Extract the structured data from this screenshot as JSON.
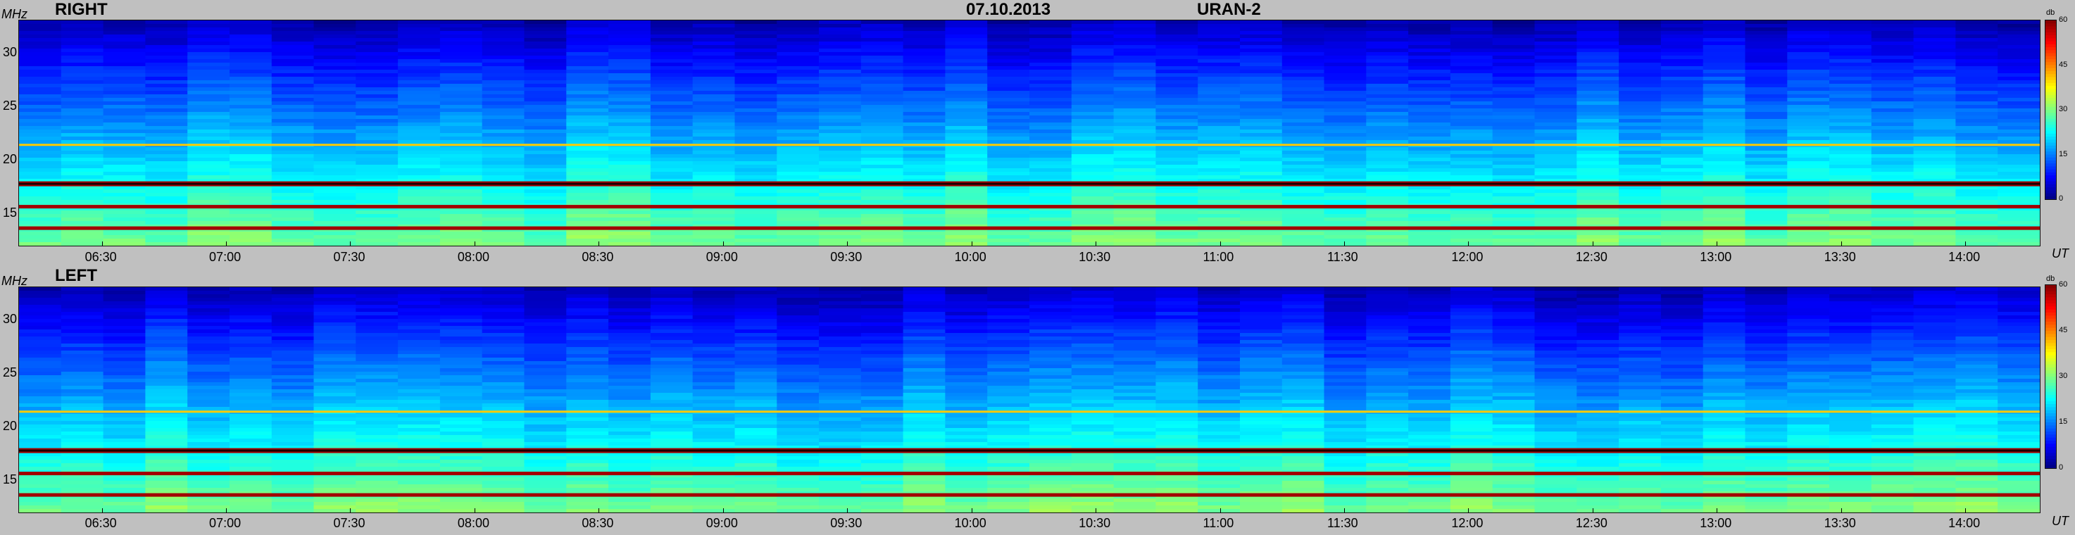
{
  "header": {
    "date": "07.10.2013",
    "instrument": "URAN-2"
  },
  "chart_data": [
    {
      "type": "heatmap",
      "title": "RIGHT",
      "ylabel": "MHz",
      "xlabel": "UT",
      "ylim": [
        12,
        33
      ],
      "yticks": [
        "30",
        "25",
        "20",
        "15"
      ],
      "xticks": [
        "06:30",
        "07:00",
        "07:30",
        "08:00",
        "08:30",
        "09:00",
        "09:30",
        "10:00",
        "10:30",
        "11:00",
        "11:30",
        "12:00",
        "12:30",
        "13:00",
        "13:30",
        "14:00"
      ],
      "xlim": [
        "06:10",
        "14:18"
      ],
      "colorbar": {
        "label": "db",
        "ticks": [
          "60",
          "45",
          "30",
          "15",
          "0"
        ],
        "range": [
          0,
          60
        ]
      },
      "features": {
        "background_high_freq_db": 3,
        "background_low_freq_db": 30,
        "narrowband_lines_mhz": [
          17.8,
          15.6,
          13.6,
          21.3
        ],
        "narrowband_line_db": 58
      }
    },
    {
      "type": "heatmap",
      "title": "LEFT",
      "ylabel": "MHz",
      "xlabel": "UT",
      "ylim": [
        12,
        33
      ],
      "yticks": [
        "30",
        "25",
        "20",
        "15"
      ],
      "xticks": [
        "06:30",
        "07:00",
        "07:30",
        "08:00",
        "08:30",
        "09:00",
        "09:30",
        "10:00",
        "10:30",
        "11:00",
        "11:30",
        "12:00",
        "12:30",
        "13:00",
        "13:30",
        "14:00"
      ],
      "xlim": [
        "06:10",
        "14:18"
      ],
      "colorbar": {
        "label": "db",
        "ticks": [
          "60",
          "45",
          "30",
          "15",
          "0"
        ],
        "range": [
          0,
          60
        ]
      },
      "features": {
        "background_high_freq_db": 3,
        "background_low_freq_db": 30,
        "narrowband_lines_mhz": [
          17.8,
          15.6,
          13.6,
          21.3
        ],
        "narrowband_line_db": 58
      }
    }
  ],
  "colors": {
    "background": "#c0c0c0",
    "jet_low": "#00008f",
    "jet_mid": "#7fff7f",
    "jet_high": "#800000"
  }
}
